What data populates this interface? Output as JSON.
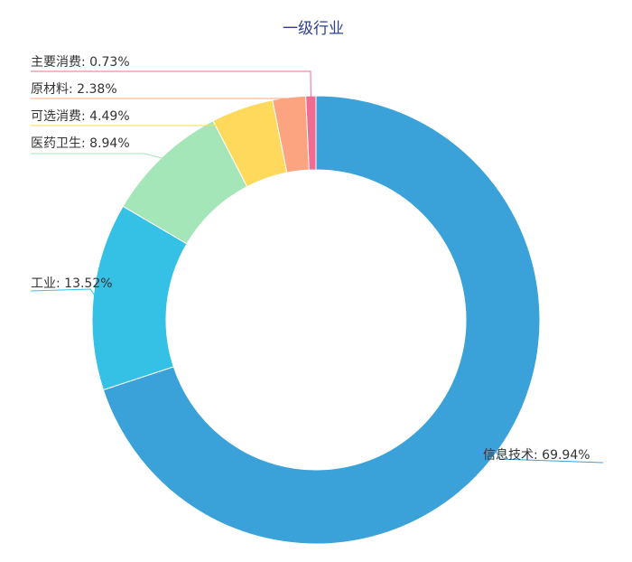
{
  "chart_data": {
    "type": "pie",
    "title": "一级行业",
    "categories": [
      "信息技术",
      "工业",
      "医药卫生",
      "可选消费",
      "原材料",
      "主要消费"
    ],
    "values": [
      69.94,
      13.52,
      8.94,
      4.49,
      2.38,
      0.73
    ],
    "unit": "%",
    "labels": [
      "信息技术: 69.94%",
      "工业: 13.52%",
      "医药卫生: 8.94%",
      "可选消费: 4.49%",
      "原材料: 2.38%",
      "主要消费: 0.73%"
    ],
    "colors": [
      "#3aa2d8",
      "#34c1e5",
      "#a5e6b8",
      "#fed95c",
      "#fca47f",
      "#f06c93"
    ],
    "donut": true,
    "start_angle_deg": 90,
    "direction": "clockwise",
    "legend": "none"
  }
}
